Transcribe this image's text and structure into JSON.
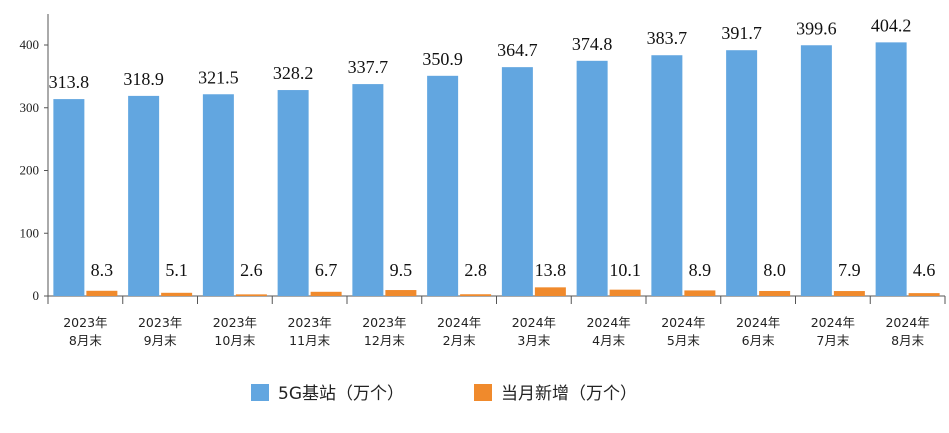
{
  "chart_data": {
    "type": "bar",
    "categories": [
      [
        "2023年",
        "8月末"
      ],
      [
        "2023年",
        "9月末"
      ],
      [
        "2023年",
        "10月末"
      ],
      [
        "2023年",
        "11月末"
      ],
      [
        "2023年",
        "12月末"
      ],
      [
        "2024年",
        "2月末"
      ],
      [
        "2024年",
        "3月末"
      ],
      [
        "2024年",
        "4月末"
      ],
      [
        "2024年",
        "5月末"
      ],
      [
        "2024年",
        "6月末"
      ],
      [
        "2024年",
        "7月末"
      ],
      [
        "2024年",
        "8月末"
      ]
    ],
    "series": [
      {
        "name": "5G基站（万个）",
        "color": "#62a6e0",
        "values": [
          313.8,
          318.9,
          321.5,
          328.2,
          337.7,
          350.9,
          364.7,
          374.8,
          383.7,
          391.7,
          399.6,
          404.2
        ],
        "labels": [
          "313.8",
          "318.9",
          "321.5",
          "328.2",
          "337.7",
          "350.9",
          "364.7",
          "374.8",
          "383.7",
          "391.7",
          "399.6",
          "404.2"
        ]
      },
      {
        "name": "当月新增（万个）",
        "color": "#f08a2c",
        "values": [
          8.3,
          5.1,
          2.6,
          6.7,
          9.5,
          2.8,
          13.8,
          10.1,
          8.9,
          8.0,
          7.9,
          4.6
        ],
        "labels": [
          "8.3",
          "5.1",
          "2.6",
          "6.7",
          "9.5",
          "2.8",
          "13.8",
          "10.1",
          "8.9",
          "8.0",
          "7.9",
          "4.6"
        ]
      }
    ],
    "yticks": [
      0,
      100,
      200,
      300,
      400
    ],
    "ylim": [
      0,
      400
    ],
    "title": "",
    "xlabel": "",
    "ylabel": "",
    "grid": false,
    "legend_position": "bottom"
  }
}
